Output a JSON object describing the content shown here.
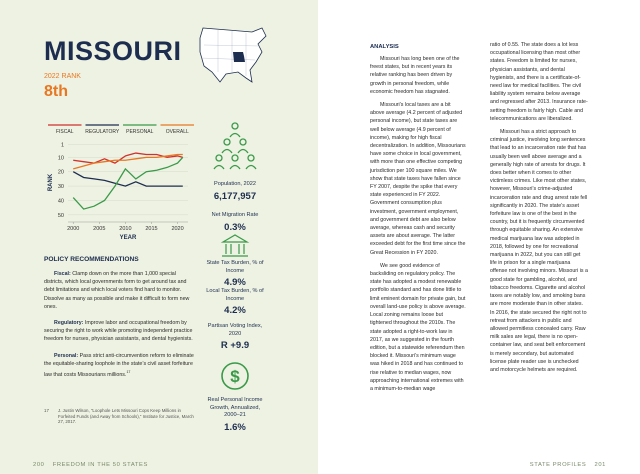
{
  "header": {
    "title": "MISSOURI",
    "rank_label": "2022 RANK",
    "rank": "8th"
  },
  "chart_data": {
    "type": "line",
    "x": [
      2000,
      2002,
      2004,
      2006,
      2008,
      2010,
      2012,
      2014,
      2016,
      2018,
      2020,
      2021
    ],
    "series": [
      {
        "name": "FISCAL",
        "color": "#d0312d",
        "values": [
          12,
          13,
          14,
          11,
          14,
          9,
          7,
          8,
          8,
          10,
          9,
          10
        ]
      },
      {
        "name": "REGULATORY",
        "color": "#1d2d4f",
        "values": [
          20,
          24,
          25,
          26,
          28,
          30,
          27,
          30,
          30,
          30,
          30,
          30
        ]
      },
      {
        "name": "PERSONAL",
        "color": "#3a9a4a",
        "values": [
          38,
          46,
          44,
          40,
          30,
          18,
          25,
          20,
          19,
          17,
          14,
          10
        ]
      },
      {
        "name": "OVERALL",
        "color": "#e87722",
        "values": [
          18,
          16,
          14,
          13,
          12,
          12,
          11,
          10,
          10,
          9,
          8,
          8
        ]
      }
    ],
    "xlim": [
      1999,
      2022
    ],
    "xticks": [
      2000,
      2005,
      2010,
      2015,
      2020
    ],
    "ylim": [
      0,
      55
    ],
    "y_inverted": true,
    "yticks": [
      1,
      10,
      20,
      30,
      40,
      50
    ],
    "xlabel": "YEAR",
    "ylabel": "RANK",
    "grid": true
  },
  "stats": [
    {
      "label": "Population, 2022",
      "value": "6,177,957"
    },
    {
      "label": "Net Migration Rate",
      "value": "0.3%"
    },
    {
      "label": "State Tax Burden, % of Income",
      "value": "4.9%"
    },
    {
      "label": "Local Tax Burden, % of Income",
      "value": "4.2%"
    },
    {
      "label": "Partisan Voting Index, 2020",
      "value": "R +9.9"
    },
    {
      "label": "Real Personal Income Growth, Annualized, 2000–21",
      "value": "1.6%"
    }
  ],
  "policy": {
    "heading": "POLICY RECOMMENDATIONS",
    "items": [
      {
        "label": "Fiscal:",
        "text": "Clamp down on the more than 1,000 special districts, which local governments form to get around tax and debt limitations and which local voters find hard to monitor. Dissolve as many as possible and make it difficult to form new ones."
      },
      {
        "label": "Regulatory:",
        "text": "Improve labor and occupational freedom by securing the right to work while promoting independent practice freedom for nurses, physician assistants, and dental hygienists."
      },
      {
        "label": "Personal:",
        "text": "Pass strict anti-circumvention reform to eliminate the equitable-sharing loophole in the state’s civil asset forfeiture law that costs Missourians millions.",
        "footnote_ref": "17"
      }
    ],
    "footnote": {
      "number": "17",
      "text": "J. Justin Wilson, “Loophole Lets Missouri Cops Keep Millions in Forfeited Funds (and Away from Schools),” Institute for Justice, March 27, 2017."
    }
  },
  "analysis": {
    "heading": "ANALYSIS",
    "column1": [
      "Missouri has long been one of the freest states, but in recent years its relative ranking has been driven by growth in personal freedom, while economic freedom has stagnated.",
      "Missouri’s local taxes are a bit above average (4.2 percent of adjusted personal income), but state taxes are well below average (4.9 percent of income), making for high fiscal decentralization. In addition, Missourians have some choice in local government, with more than one effective competing jurisdiction per 100 square miles. We show that state taxes have fallen since FY 2007, despite the spike that every state experienced in FY 2022. Government consumption plus investment, government employment, and government debt are also below average, whereas cash and security assets are about average. The latter exceeded debt for the first time since the Great Recession in FY 2020.",
      "We see good evidence of backsliding on regulatory policy. The state has adopted a modest renewable portfolio standard and has done little to limit eminent domain for private gain, but overall land-use policy is above average. Local zoning remains loose but tightened throughout the 2010s. The state adopted a right-to-work law in 2017, as we suggested in the fourth edition, but a statewide referendum then blocked it. Missouri’s minimum wage was hiked in 2018 and has continued to rise relative to median wages, now approaching international extremes with a minimum-to-median wage"
    ],
    "column2": [
      "ratio of 0.55. The state does a lot less occupational licensing than most other states. Freedom is limited for nurses, physician assistants, and dental hygienists, and there is a certificate-of-need law for medical facilities. The civil liability system remains below average and regressed after 2013. Insurance rate-setting freedom is fairly high. Cable and telecommunications are liberalized.",
      "Missouri has a strict approach to criminal justice, involving long sentences that lead to an incarceration rate that has usually been well above average and a generally high rate of arrests for drugs. It does better when it comes to other victimless crimes. Like most other states, however, Missouri’s crime-adjusted incarceration rate and drug arrest rate fell significantly in 2020. The state’s asset forfeiture law is one of the best in the country, but it is frequently circumvented through equitable sharing. An extensive medical marijuana law was adopted in 2018, followed by one for recreational marijuana in 2022, but you can still get life in prison for a single marijuana offense not involving minors. Missouri is a good state for gambling, alcohol, and tobacco freedoms. Cigarette and alcohol taxes are notably low, and smoking bans are more moderate than in other states. In 2016, the state secured the right not to retreat from attackers in public and allowed permitless concealed carry. Raw milk sales are legal, there is no open-container law, and seat belt enforcement is merely secondary, but automated license plate reader use is unchecked and motorcycle helmets are required."
    ]
  },
  "footer": {
    "left_page": "200",
    "left_text": "FREEDOM IN THE 50 STATES",
    "right_text": "STATE PROFILES",
    "right_page": "201"
  }
}
